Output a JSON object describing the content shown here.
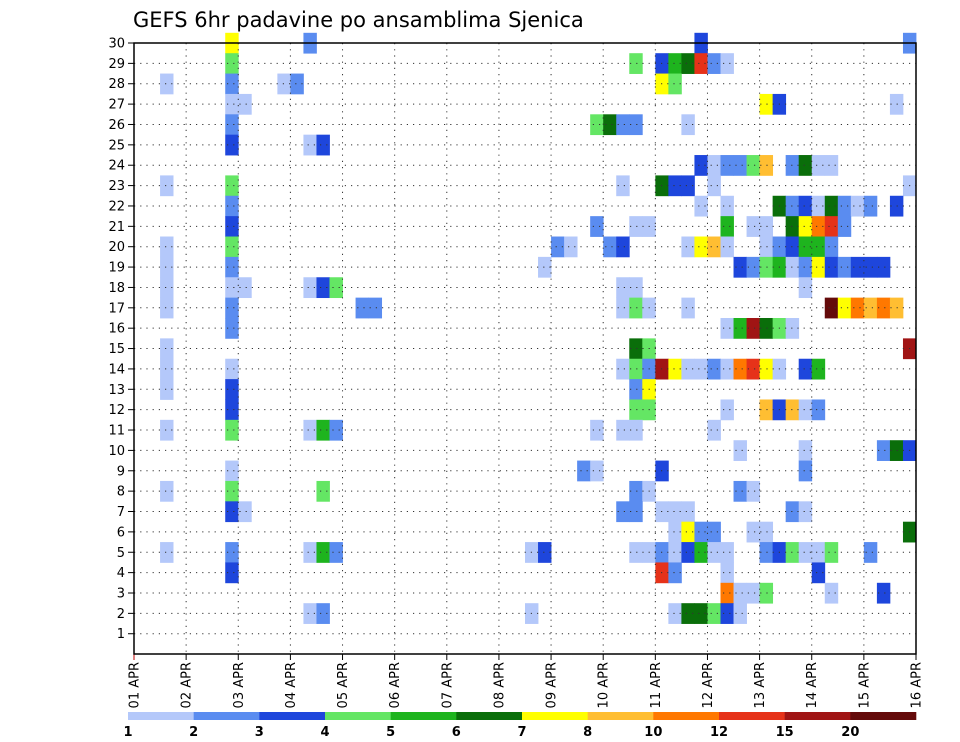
{
  "chart_data": {
    "type": "heatmap",
    "title": "GEFS 6hr padavine po ansamblima Sjenica",
    "xlabel": "",
    "ylabel": "",
    "y_ticks": [
      "1",
      "2",
      "3",
      "4",
      "5",
      "6",
      "7",
      "8",
      "9",
      "10",
      "11",
      "12",
      "13",
      "14",
      "15",
      "16",
      "17",
      "18",
      "19",
      "20",
      "21",
      "22",
      "23",
      "24",
      "25",
      "26",
      "27",
      "28",
      "29",
      "30"
    ],
    "x_ticks": [
      "01 APR",
      "02 APR",
      "03 APR",
      "04 APR",
      "05 APR",
      "06 APR",
      "07 APR",
      "08 APR",
      "09 APR",
      "10 APR",
      "11 APR",
      "12 APR",
      "13 APR",
      "14 APR",
      "15 APR",
      "16 APR"
    ],
    "xlim_days": [
      1,
      16
    ],
    "ylim_members": [
      0,
      30
    ],
    "steps_per_day": 4,
    "grid": "dotted",
    "legend": "bottom",
    "colorbar": {
      "labels": [
        "1",
        "2",
        "3",
        "4",
        "5",
        "6",
        "7",
        "8",
        "10",
        "12",
        "15",
        "20"
      ],
      "colors": [
        "#b4c8fa",
        "#5a8cf0",
        "#1e46dc",
        "#64e664",
        "#1eb41e",
        "#0a6e0a",
        "#ffff00",
        "#ffbe32",
        "#ff7800",
        "#e63219",
        "#a01414",
        "#640a0a"
      ]
    },
    "note": "cells: [member, timestep(0=01 APR 00Z, 6-hourly), color class 1-12]",
    "cells": [
      [
        30,
        7,
        7
      ],
      [
        30,
        13,
        2
      ],
      [
        30,
        43,
        3
      ],
      [
        30,
        59,
        2
      ],
      [
        29,
        7,
        4
      ],
      [
        29,
        38,
        4
      ],
      [
        29,
        40,
        3
      ],
      [
        29,
        41,
        5
      ],
      [
        29,
        42,
        6
      ],
      [
        29,
        43,
        10
      ],
      [
        29,
        44,
        2
      ],
      [
        29,
        45,
        1
      ],
      [
        28,
        2,
        1
      ],
      [
        28,
        7,
        2
      ],
      [
        28,
        11,
        1
      ],
      [
        28,
        12,
        2
      ],
      [
        28,
        40,
        7
      ],
      [
        28,
        41,
        4
      ],
      [
        27,
        7,
        1
      ],
      [
        27,
        8,
        1
      ],
      [
        27,
        48,
        7
      ],
      [
        27,
        49,
        3
      ],
      [
        27,
        58,
        1
      ],
      [
        26,
        7,
        2
      ],
      [
        26,
        35,
        4
      ],
      [
        26,
        36,
        6
      ],
      [
        26,
        37,
        2
      ],
      [
        26,
        38,
        2
      ],
      [
        26,
        42,
        1
      ],
      [
        25,
        7,
        3
      ],
      [
        25,
        13,
        1
      ],
      [
        25,
        14,
        3
      ],
      [
        24,
        43,
        3
      ],
      [
        24,
        44,
        1
      ],
      [
        24,
        45,
        2
      ],
      [
        24,
        46,
        2
      ],
      [
        24,
        47,
        4
      ],
      [
        24,
        48,
        8
      ],
      [
        24,
        50,
        2
      ],
      [
        24,
        51,
        6
      ],
      [
        24,
        52,
        1
      ],
      [
        24,
        53,
        1
      ],
      [
        23,
        2,
        1
      ],
      [
        23,
        7,
        4
      ],
      [
        23,
        37,
        1
      ],
      [
        23,
        40,
        6
      ],
      [
        23,
        41,
        3
      ],
      [
        23,
        42,
        3
      ],
      [
        23,
        44,
        1
      ],
      [
        23,
        59,
        1
      ],
      [
        22,
        7,
        2
      ],
      [
        22,
        43,
        1
      ],
      [
        22,
        45,
        1
      ],
      [
        22,
        49,
        6
      ],
      [
        22,
        50,
        2
      ],
      [
        22,
        51,
        3
      ],
      [
        22,
        52,
        1
      ],
      [
        22,
        53,
        6
      ],
      [
        22,
        54,
        2
      ],
      [
        22,
        55,
        1
      ],
      [
        22,
        56,
        2
      ],
      [
        22,
        58,
        3
      ],
      [
        21,
        7,
        3
      ],
      [
        21,
        35,
        2
      ],
      [
        21,
        38,
        1
      ],
      [
        21,
        39,
        1
      ],
      [
        21,
        45,
        5
      ],
      [
        21,
        47,
        1
      ],
      [
        21,
        48,
        1
      ],
      [
        21,
        50,
        6
      ],
      [
        21,
        51,
        7
      ],
      [
        21,
        52,
        9
      ],
      [
        21,
        53,
        10
      ],
      [
        21,
        54,
        2
      ],
      [
        20,
        2,
        1
      ],
      [
        20,
        7,
        4
      ],
      [
        20,
        32,
        2
      ],
      [
        20,
        33,
        1
      ],
      [
        20,
        36,
        2
      ],
      [
        20,
        37,
        3
      ],
      [
        20,
        42,
        1
      ],
      [
        20,
        43,
        7
      ],
      [
        20,
        44,
        8
      ],
      [
        20,
        45,
        1
      ],
      [
        20,
        48,
        1
      ],
      [
        20,
        49,
        2
      ],
      [
        20,
        50,
        3
      ],
      [
        20,
        51,
        5
      ],
      [
        20,
        52,
        5
      ],
      [
        20,
        53,
        2
      ],
      [
        19,
        2,
        1
      ],
      [
        19,
        7,
        2
      ],
      [
        19,
        31,
        1
      ],
      [
        19,
        46,
        3
      ],
      [
        19,
        47,
        2
      ],
      [
        19,
        48,
        4
      ],
      [
        19,
        49,
        5
      ],
      [
        19,
        50,
        1
      ],
      [
        19,
        51,
        2
      ],
      [
        19,
        52,
        7
      ],
      [
        19,
        53,
        3
      ],
      [
        19,
        54,
        2
      ],
      [
        19,
        55,
        3
      ],
      [
        19,
        56,
        3
      ],
      [
        19,
        57,
        3
      ],
      [
        18,
        2,
        1
      ],
      [
        18,
        7,
        1
      ],
      [
        18,
        8,
        1
      ],
      [
        18,
        13,
        1
      ],
      [
        18,
        14,
        3
      ],
      [
        18,
        15,
        4
      ],
      [
        18,
        37,
        1
      ],
      [
        18,
        38,
        1
      ],
      [
        18,
        51,
        1
      ],
      [
        17,
        2,
        1
      ],
      [
        17,
        7,
        2
      ],
      [
        17,
        17,
        2
      ],
      [
        17,
        18,
        2
      ],
      [
        17,
        37,
        1
      ],
      [
        17,
        38,
        4
      ],
      [
        17,
        39,
        1
      ],
      [
        17,
        42,
        1
      ],
      [
        17,
        53,
        12
      ],
      [
        17,
        54,
        7
      ],
      [
        17,
        55,
        9
      ],
      [
        17,
        56,
        8
      ],
      [
        17,
        57,
        9
      ],
      [
        17,
        58,
        8
      ],
      [
        16,
        7,
        2
      ],
      [
        16,
        45,
        1
      ],
      [
        16,
        46,
        5
      ],
      [
        16,
        47,
        11
      ],
      [
        16,
        48,
        6
      ],
      [
        16,
        49,
        4
      ],
      [
        16,
        50,
        1
      ],
      [
        15,
        2,
        1
      ],
      [
        15,
        38,
        6
      ],
      [
        15,
        39,
        4
      ],
      [
        15,
        59,
        11
      ],
      [
        14,
        2,
        1
      ],
      [
        14,
        7,
        1
      ],
      [
        14,
        37,
        1
      ],
      [
        14,
        38,
        4
      ],
      [
        14,
        39,
        2
      ],
      [
        14,
        40,
        11
      ],
      [
        14,
        41,
        7
      ],
      [
        14,
        42,
        1
      ],
      [
        14,
        43,
        1
      ],
      [
        14,
        44,
        2
      ],
      [
        14,
        45,
        1
      ],
      [
        14,
        46,
        9
      ],
      [
        14,
        47,
        10
      ],
      [
        14,
        48,
        7
      ],
      [
        14,
        49,
        1
      ],
      [
        14,
        51,
        3
      ],
      [
        14,
        52,
        5
      ],
      [
        13,
        2,
        1
      ],
      [
        13,
        7,
        3
      ],
      [
        13,
        38,
        2
      ],
      [
        13,
        39,
        7
      ],
      [
        12,
        7,
        3
      ],
      [
        12,
        38,
        4
      ],
      [
        12,
        39,
        4
      ],
      [
        12,
        45,
        1
      ],
      [
        12,
        48,
        8
      ],
      [
        12,
        49,
        3
      ],
      [
        12,
        50,
        8
      ],
      [
        12,
        51,
        1
      ],
      [
        12,
        52,
        2
      ],
      [
        11,
        2,
        1
      ],
      [
        11,
        7,
        4
      ],
      [
        11,
        13,
        1
      ],
      [
        11,
        14,
        5
      ],
      [
        11,
        15,
        2
      ],
      [
        11,
        35,
        1
      ],
      [
        11,
        37,
        1
      ],
      [
        11,
        38,
        1
      ],
      [
        11,
        44,
        1
      ],
      [
        10,
        46,
        1
      ],
      [
        10,
        51,
        1
      ],
      [
        10,
        57,
        2
      ],
      [
        10,
        58,
        6
      ],
      [
        10,
        59,
        3
      ],
      [
        9,
        7,
        1
      ],
      [
        9,
        34,
        2
      ],
      [
        9,
        35,
        1
      ],
      [
        9,
        40,
        3
      ],
      [
        9,
        51,
        2
      ],
      [
        8,
        2,
        1
      ],
      [
        8,
        7,
        4
      ],
      [
        8,
        14,
        4
      ],
      [
        8,
        38,
        2
      ],
      [
        8,
        39,
        1
      ],
      [
        8,
        46,
        2
      ],
      [
        8,
        47,
        1
      ],
      [
        7,
        7,
        3
      ],
      [
        7,
        8,
        1
      ],
      [
        7,
        37,
        2
      ],
      [
        7,
        38,
        2
      ],
      [
        7,
        40,
        1
      ],
      [
        7,
        41,
        1
      ],
      [
        7,
        42,
        1
      ],
      [
        7,
        50,
        2
      ],
      [
        7,
        51,
        1
      ],
      [
        6,
        41,
        1
      ],
      [
        6,
        42,
        7
      ],
      [
        6,
        43,
        2
      ],
      [
        6,
        44,
        2
      ],
      [
        6,
        47,
        1
      ],
      [
        6,
        48,
        1
      ],
      [
        6,
        59,
        6
      ],
      [
        5,
        2,
        1
      ],
      [
        5,
        7,
        2
      ],
      [
        5,
        13,
        1
      ],
      [
        5,
        14,
        5
      ],
      [
        5,
        15,
        2
      ],
      [
        5,
        30,
        1
      ],
      [
        5,
        31,
        3
      ],
      [
        5,
        38,
        1
      ],
      [
        5,
        39,
        1
      ],
      [
        5,
        40,
        2
      ],
      [
        5,
        41,
        1
      ],
      [
        5,
        42,
        3
      ],
      [
        5,
        43,
        5
      ],
      [
        5,
        44,
        1
      ],
      [
        5,
        45,
        1
      ],
      [
        5,
        48,
        2
      ],
      [
        5,
        49,
        3
      ],
      [
        5,
        50,
        4
      ],
      [
        5,
        51,
        1
      ],
      [
        5,
        52,
        1
      ],
      [
        5,
        53,
        4
      ],
      [
        5,
        56,
        2
      ],
      [
        4,
        7,
        3
      ],
      [
        4,
        40,
        10
      ],
      [
        4,
        41,
        2
      ],
      [
        4,
        45,
        1
      ],
      [
        4,
        52,
        3
      ],
      [
        3,
        45,
        9
      ],
      [
        3,
        46,
        1
      ],
      [
        3,
        47,
        1
      ],
      [
        3,
        48,
        4
      ],
      [
        3,
        53,
        1
      ],
      [
        3,
        57,
        3
      ],
      [
        2,
        13,
        1
      ],
      [
        2,
        14,
        2
      ],
      [
        2,
        30,
        1
      ],
      [
        2,
        41,
        1
      ],
      [
        2,
        42,
        6
      ],
      [
        2,
        43,
        6
      ],
      [
        2,
        44,
        4
      ],
      [
        2,
        45,
        3
      ],
      [
        2,
        46,
        1
      ]
    ]
  }
}
